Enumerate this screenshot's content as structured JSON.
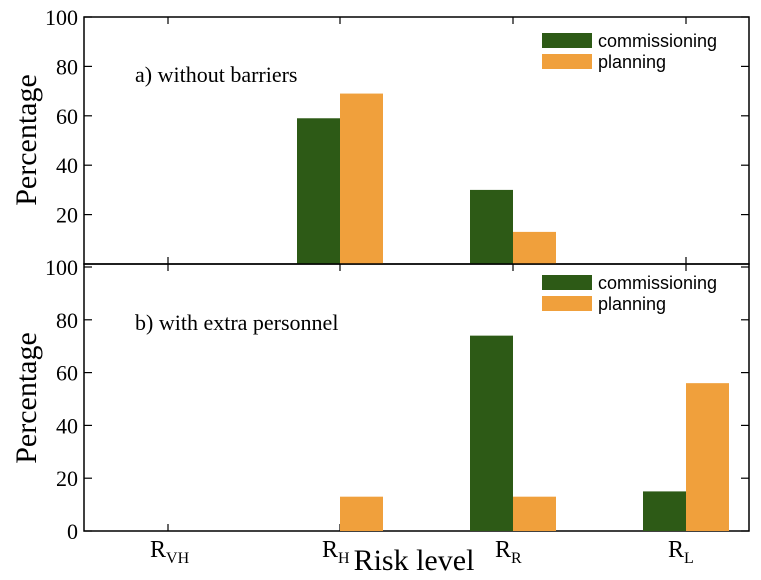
{
  "chart_data": {
    "type": "bar",
    "xlabel": "Risk level",
    "categories": [
      {
        "main": "R",
        "sub": "VH"
      },
      {
        "main": "R",
        "sub": "H"
      },
      {
        "main": "R",
        "sub": "R"
      },
      {
        "main": "R",
        "sub": "L"
      }
    ],
    "colors": {
      "commissioning": "#2d5a16",
      "planning": "#f0a03c"
    },
    "legend_position": "top-right",
    "panels": [
      {
        "label": "a) without barriers",
        "ylabel": "Percentage",
        "ylim": [
          0,
          100
        ],
        "yticks": [
          "100",
          "80",
          "60",
          "40",
          "20"
        ],
        "series": [
          {
            "name": "commissioning",
            "values": [
              0,
              59,
              30,
              0
            ]
          },
          {
            "name": "planning",
            "values": [
              0,
              69,
              13,
              0
            ]
          }
        ]
      },
      {
        "label": "b) with extra personnel",
        "ylabel": "Percentage",
        "ylim": [
          0,
          100
        ],
        "yticks": [
          "100",
          "80",
          "60",
          "40",
          "20",
          "0"
        ],
        "series": [
          {
            "name": "commissioning",
            "values": [
              0,
              0,
              74,
              15
            ]
          },
          {
            "name": "planning",
            "values": [
              0,
              13,
              13,
              56
            ]
          }
        ]
      }
    ]
  }
}
